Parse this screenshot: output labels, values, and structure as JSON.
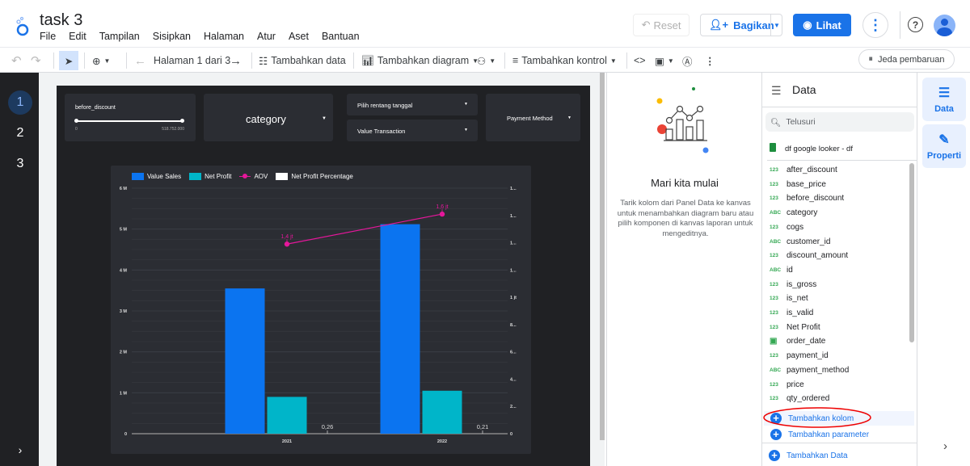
{
  "app": {
    "title": "task 3",
    "menu": [
      "File",
      "Edit",
      "Tampilan",
      "Sisipkan",
      "Halaman",
      "Atur",
      "Aset",
      "Bantuan"
    ],
    "reset_label": "Reset",
    "share_label": "Bagikan",
    "view_label": "Lihat",
    "help_glyph": "?"
  },
  "toolbar": {
    "page_nav": "Halaman 1 dari 3",
    "add_data": "Tambahkan data",
    "add_chart": "Tambahkan diagram",
    "add_control": "Tambahkan kontrol",
    "pause": "Jeda pembaruan"
  },
  "pages": [
    "1",
    "2",
    "3"
  ],
  "report": {
    "slider": {
      "label": "before_discount",
      "min": "0",
      "max": "518.752.000",
      "fill_fraction": 1.0
    },
    "category_dropdown": "category",
    "date_range": "Pilih rentang tanggal",
    "value_transaction": "Value Transaction",
    "payment_method": "Payment Method"
  },
  "chart_data": {
    "type": "bar",
    "categories": [
      "2021",
      "2022"
    ],
    "series": [
      {
        "name": "Value Sales",
        "kind": "bar",
        "axis": "left",
        "color": "#0b74f0",
        "values": [
          3550000,
          5120000
        ]
      },
      {
        "name": "Net Profit",
        "kind": "bar",
        "axis": "left",
        "color": "#00b5c9",
        "values": [
          900000,
          1050000
        ]
      },
      {
        "name": "AOV",
        "kind": "line",
        "axis": "right",
        "color": "#e5179b",
        "values": [
          1390000,
          1610000
        ],
        "labels": [
          "1,4 jt",
          "1,6 jt"
        ]
      },
      {
        "name": "Net Profit Percentage",
        "kind": "line",
        "axis": "right",
        "color": "#ffffff",
        "values": [
          0.26,
          0.21
        ],
        "labels": [
          "0,26",
          "0,21"
        ]
      }
    ],
    "left_axis": {
      "range": [
        0,
        6000000
      ],
      "ticks": [
        "0",
        "1 M",
        "2 M",
        "3 M",
        "4 M",
        "5 M",
        "6 M"
      ]
    },
    "right_axis": {
      "range": [
        0,
        1800000
      ],
      "ticks": [
        "0",
        "2...",
        "4...",
        "6...",
        "8...",
        "1 jt",
        "1...",
        "1...",
        "1...",
        "1..."
      ]
    },
    "legend": "top-left",
    "grid": true
  },
  "mid_panel": {
    "title": "Mari kita mulai",
    "body": "Tarik kolom dari Panel Data ke kanvas untuk menambahkan diagram baru atau pilih komponen di kanvas laporan untuk mengeditnya."
  },
  "data_panel": {
    "title": "Data",
    "search_placeholder": "Telusuri",
    "source": "df google looker - df",
    "fields": [
      {
        "type": "123",
        "name": "after_discount"
      },
      {
        "type": "123",
        "name": "base_price"
      },
      {
        "type": "123",
        "name": "before_discount"
      },
      {
        "type": "ABC",
        "name": "category"
      },
      {
        "type": "123",
        "name": "cogs"
      },
      {
        "type": "ABC",
        "name": "customer_id"
      },
      {
        "type": "123",
        "name": "discount_amount"
      },
      {
        "type": "ABC",
        "name": "id"
      },
      {
        "type": "123",
        "name": "is_gross"
      },
      {
        "type": "123",
        "name": "is_net"
      },
      {
        "type": "123",
        "name": "is_valid"
      },
      {
        "type": "123",
        "name": "Net Profit"
      },
      {
        "type": "date",
        "name": "order_date"
      },
      {
        "type": "123",
        "name": "payment_id"
      },
      {
        "type": "ABC",
        "name": "payment_method"
      },
      {
        "type": "123",
        "name": "price"
      },
      {
        "type": "123",
        "name": "qty_ordered"
      }
    ],
    "add_field": "Tambahkan kolom",
    "add_parameter": "Tambahkan parameter",
    "add_data": "Tambahkan Data"
  },
  "rail": {
    "data": "Data",
    "properties": "Properti"
  }
}
